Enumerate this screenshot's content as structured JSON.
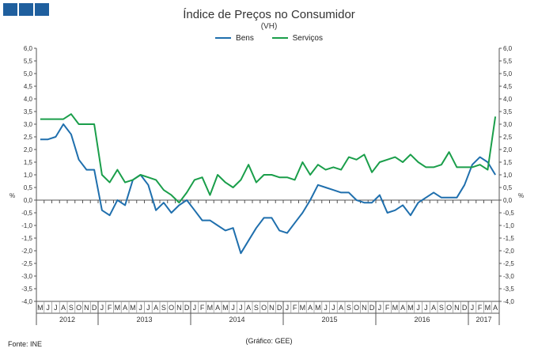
{
  "header": {
    "squares": [
      "sq1",
      "sq2",
      "sq3"
    ]
  },
  "title": "Índice de Preços no Consumidor",
  "subtitle": "(VH)",
  "footer": {
    "source": "Fonte: INE",
    "graph_credit": "(Gráfico: GEE)"
  },
  "colors": {
    "bens": "#1f6fad",
    "servicos": "#1a9e4a",
    "accent": "#1f5f9e"
  },
  "chart_data": {
    "type": "line",
    "title": "Índice de Preços no Consumidor",
    "ylabel_left": "%",
    "ylabel_right": "%",
    "ylim": [
      -4.0,
      6.0
    ],
    "yticks": [
      "6,0",
      "5,5",
      "5,0",
      "4,5",
      "4,0",
      "3,5",
      "3,0",
      "2,5",
      "2,0",
      "1,5",
      "1,0",
      "0,5",
      "0,0",
      "-0,5",
      "-1,0",
      "-1,5",
      "-2,0",
      "-2,5",
      "-3,0",
      "-3,5",
      "-4,0"
    ],
    "month_labels": [
      "M",
      "J",
      "J",
      "A",
      "S",
      "O",
      "N",
      "D",
      "J",
      "F",
      "M",
      "A",
      "M",
      "J",
      "J",
      "A",
      "S",
      "O",
      "N",
      "D",
      "J",
      "F",
      "M",
      "A",
      "M",
      "J",
      "J",
      "A",
      "S",
      "O",
      "N",
      "D",
      "J",
      "F",
      "M",
      "A",
      "M",
      "J",
      "J",
      "A",
      "S",
      "O",
      "N",
      "D",
      "J",
      "F",
      "M",
      "A",
      "M",
      "J",
      "J",
      "A",
      "S",
      "O",
      "N",
      "D",
      "J",
      "F",
      "M",
      "A"
    ],
    "years": [
      {
        "label": "2012",
        "start": 0,
        "end": 7
      },
      {
        "label": "2013",
        "start": 8,
        "end": 19
      },
      {
        "label": "2014",
        "start": 20,
        "end": 31
      },
      {
        "label": "2015",
        "start": 32,
        "end": 43
      },
      {
        "label": "2016",
        "start": 44,
        "end": 55
      },
      {
        "label": "2017",
        "start": 56,
        "end": 59
      }
    ],
    "series": [
      {
        "name": "Bens",
        "values": [
          2.4,
          2.4,
          2.5,
          3.0,
          2.6,
          1.6,
          1.2,
          1.2,
          -0.4,
          -0.6,
          0.0,
          -0.2,
          0.8,
          1.0,
          0.6,
          -0.4,
          -0.1,
          -0.5,
          -0.2,
          0.0,
          -0.4,
          -0.8,
          -0.8,
          -1.0,
          -1.2,
          -1.1,
          -2.1,
          -1.6,
          -1.1,
          -0.7,
          -0.7,
          -1.2,
          -1.3,
          -0.9,
          -0.5,
          0.0,
          0.6,
          0.5,
          0.4,
          0.3,
          0.3,
          0.0,
          -0.1,
          -0.1,
          0.2,
          -0.5,
          -0.4,
          -0.2,
          -0.6,
          -0.1,
          0.1,
          0.3,
          0.1,
          0.1,
          0.1,
          0.6,
          1.4,
          1.7,
          1.5,
          1.0
        ]
      },
      {
        "name": "Serviços",
        "values": [
          3.2,
          3.2,
          3.2,
          3.2,
          3.4,
          3.0,
          3.0,
          3.0,
          1.0,
          0.7,
          1.2,
          0.7,
          0.8,
          1.0,
          0.9,
          0.8,
          0.4,
          0.2,
          -0.1,
          0.3,
          0.8,
          0.9,
          0.2,
          1.0,
          0.7,
          0.5,
          0.8,
          1.4,
          0.7,
          1.0,
          1.0,
          0.9,
          0.9,
          0.8,
          1.5,
          1.0,
          1.4,
          1.2,
          1.3,
          1.2,
          1.7,
          1.6,
          1.8,
          1.1,
          1.5,
          1.6,
          1.7,
          1.5,
          1.8,
          1.5,
          1.3,
          1.3,
          1.4,
          1.9,
          1.3,
          1.3,
          1.3,
          1.4,
          1.2,
          3.3
        ]
      }
    ]
  }
}
